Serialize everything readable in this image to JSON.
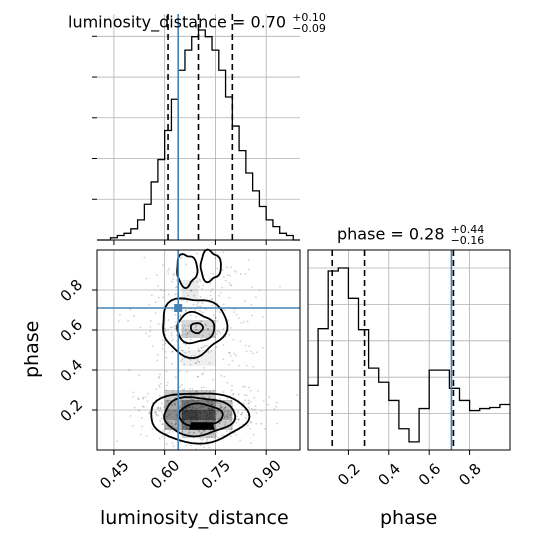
{
  "chart_data": [
    {
      "type": "bar",
      "panel": "luminosity_distance marginal histogram",
      "title": {
        "param": "luminosity_distance",
        "median": "0.70",
        "plus": "+0.10",
        "minus": "−0.09"
      },
      "xlim": [
        0.4,
        1.0
      ],
      "x_ticks": [
        "0.45",
        "0.60",
        "0.75",
        "0.90"
      ],
      "bin_edges": [
        0.4,
        0.42,
        0.44,
        0.46,
        0.48,
        0.5,
        0.52,
        0.54,
        0.56,
        0.58,
        0.6,
        0.62,
        0.64,
        0.66,
        0.68,
        0.7,
        0.72,
        0.74,
        0.76,
        0.78,
        0.8,
        0.82,
        0.84,
        0.86,
        0.88,
        0.9,
        0.92,
        0.94,
        0.96,
        0.98,
        1.0
      ],
      "counts": [
        0,
        0,
        1,
        2,
        3,
        5,
        9,
        16,
        26,
        36,
        49,
        63,
        76,
        85,
        91,
        94,
        91,
        85,
        76,
        64,
        51,
        40,
        30,
        22,
        15,
        9,
        6,
        3,
        2,
        0
      ],
      "quantiles": [
        0.61,
        0.7,
        0.8
      ],
      "truth": 0.64
    },
    {
      "type": "heatmap",
      "panel": "2D posterior density luminosity_distance vs phase",
      "xlabel": "luminosity_distance",
      "ylabel": "phase",
      "xlim": [
        0.4,
        1.0
      ],
      "ylim": [
        0.0,
        1.0
      ],
      "x_ticks": [
        "0.45",
        "0.60",
        "0.75",
        "0.90"
      ],
      "y_ticks": [
        "0.2",
        "0.4",
        "0.6",
        "0.8"
      ],
      "truth": {
        "x": 0.64,
        "y": 0.71
      },
      "density_peaks": [
        {
          "x": 0.7,
          "y": 0.16,
          "level": "high"
        },
        {
          "x": 0.69,
          "y": 0.6,
          "level": "medium"
        }
      ]
    },
    {
      "type": "bar",
      "panel": "phase marginal histogram",
      "xlabel": "phase",
      "title": {
        "param": "phase",
        "median": "0.28",
        "plus": "+0.44",
        "minus": "−0.16"
      },
      "xlim": [
        0.0,
        1.0
      ],
      "x_ticks": [
        "0.2",
        "0.4",
        "0.6",
        "0.8"
      ],
      "bin_edges": [
        0.0,
        0.05,
        0.1,
        0.15,
        0.2,
        0.25,
        0.3,
        0.35,
        0.4,
        0.45,
        0.5,
        0.55,
        0.6,
        0.65,
        0.7,
        0.75,
        0.8,
        0.85,
        0.9,
        0.95,
        1.0
      ],
      "counts": [
        64,
        120,
        177,
        180,
        150,
        119,
        81,
        67,
        49,
        21,
        8,
        41,
        79,
        79,
        61,
        49,
        39,
        41,
        42,
        45
      ],
      "quantiles": [
        0.12,
        0.28,
        0.72
      ],
      "truth": 0.71
    }
  ],
  "colors": {
    "hist_line": "#000000",
    "quantile_line": "#000000",
    "truth_line": "#4682b4",
    "grid": "#b0b0b0",
    "density": "#000000"
  }
}
